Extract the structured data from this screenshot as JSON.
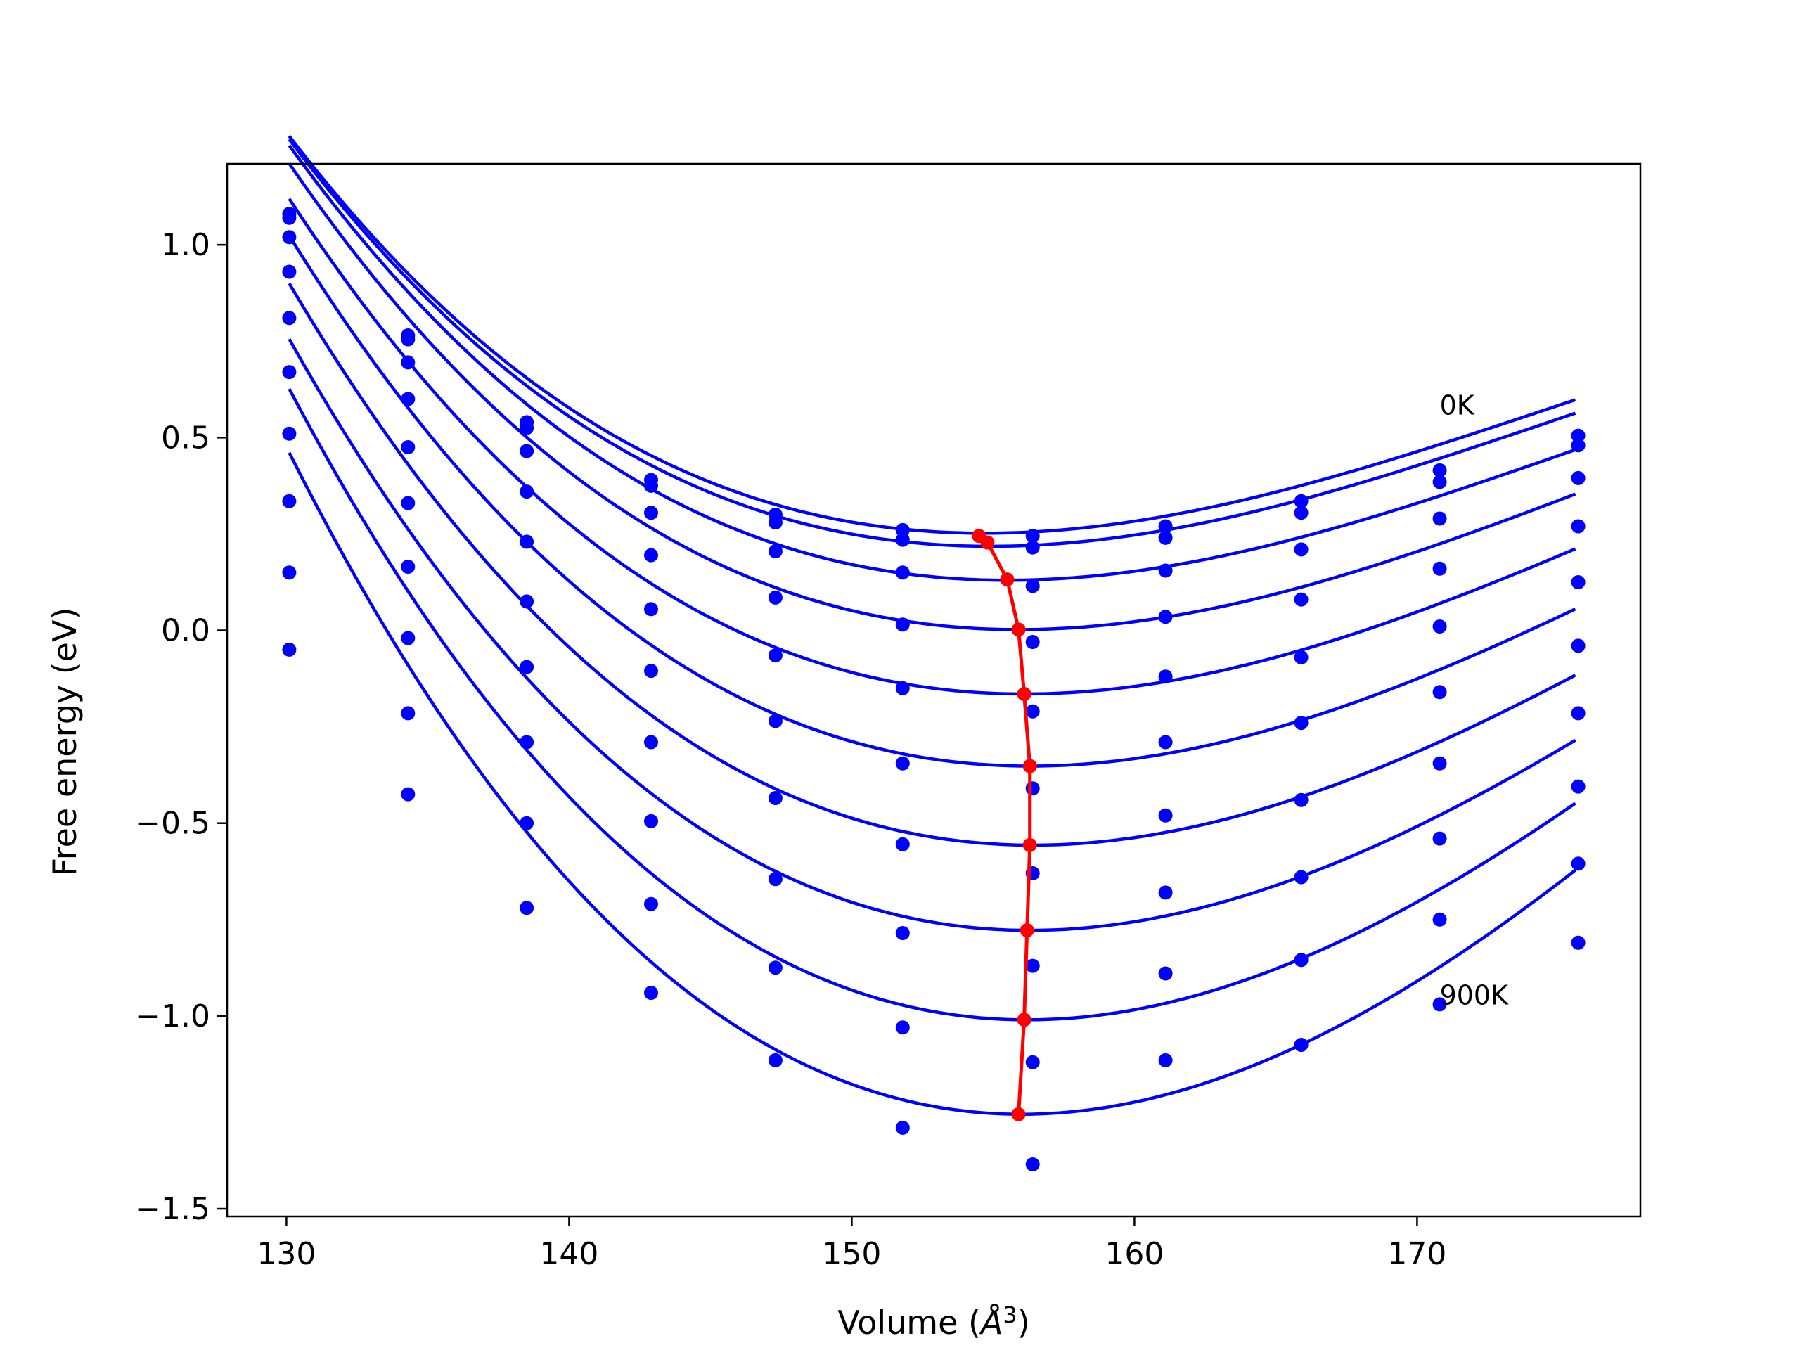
{
  "chart_data": {
    "type": "line",
    "title": "",
    "xlabel": "Volume (",
    "xlabel_symbol": "Å",
    "xlabel_sup": "3",
    "xlabel_close": ")",
    "ylabel": "Free energy (eV)",
    "xlim": [
      127.9,
      177.9
    ],
    "ylim": [
      -1.52,
      1.21
    ],
    "xticks": [
      130,
      140,
      150,
      160,
      170
    ],
    "xtick_labels": [
      "130",
      "140",
      "150",
      "160",
      "170"
    ],
    "yticks": [
      1.0,
      0.5,
      0.0,
      -0.5,
      -1.0,
      -1.5
    ],
    "ytick_labels": [
      "1.0",
      "0.5",
      "0.0",
      "−0.5",
      "−1.0",
      "−1.5"
    ],
    "grid": false,
    "colors": {
      "curves": "#0000ff",
      "points": "#0000ff",
      "minimum_path": "#ff0000"
    },
    "annotations": [
      {
        "text": "0K",
        "x": 170.8,
        "y": 0.56
      },
      {
        "text": "900K",
        "x": 170.8,
        "y": -0.97
      }
    ],
    "volumes": [
      130.1,
      134.3,
      138.5,
      142.9,
      147.3,
      151.8,
      156.4,
      161.1,
      165.9,
      170.8,
      175.7
    ],
    "series": [
      {
        "fit": {
          "vmin": 154.7,
          "fmin": 0.252,
          "a": 0.00121,
          "b": 2e-05,
          "vstart": 130.1,
          "vend": 175.7
        },
        "points": [
          1.08,
          0.765,
          0.54,
          0.39,
          0.3,
          0.26,
          0.245,
          0.27,
          0.335,
          0.415,
          0.505
        ]
      },
      {
        "fit": {
          "vmin": 154.9,
          "fmin": 0.218,
          "a": 0.00122,
          "b": 2e-05,
          "vstart": 130.1,
          "vend": 175.7
        },
        "points": [
          1.07,
          0.755,
          0.525,
          0.375,
          0.28,
          0.235,
          0.215,
          0.24,
          0.305,
          0.385,
          0.48
        ]
      },
      {
        "fit": {
          "vmin": 155.5,
          "fmin": 0.13,
          "a": 0.00124,
          "b": 2e-05,
          "vstart": 130.1,
          "vend": 175.7
        },
        "points": [
          1.02,
          0.695,
          0.465,
          0.305,
          0.205,
          0.15,
          0.115,
          0.155,
          0.21,
          0.29,
          0.395
        ]
      },
      {
        "fit": {
          "vmin": 155.9,
          "fmin": 0.002,
          "a": 0.0013,
          "b": 2e-05,
          "vstart": 130.1,
          "vend": 175.7
        },
        "points": [
          0.93,
          0.6,
          0.36,
          0.195,
          0.085,
          0.015,
          -0.03,
          0.035,
          0.08,
          0.16,
          0.27
        ]
      },
      {
        "fit": {
          "vmin": 156.1,
          "fmin": -0.165,
          "a": 0.00138,
          "b": 2e-05,
          "vstart": 130.1,
          "vend": 175.7
        },
        "points": [
          0.81,
          0.475,
          0.23,
          0.055,
          -0.065,
          -0.15,
          -0.21,
          -0.12,
          -0.07,
          0.01,
          0.125
        ]
      },
      {
        "fit": {
          "vmin": 156.3,
          "fmin": -0.352,
          "a": 0.00148,
          "b": 2e-05,
          "vstart": 130.1,
          "vend": 175.7
        },
        "points": [
          0.67,
          0.33,
          0.075,
          -0.105,
          -0.235,
          -0.345,
          -0.41,
          -0.29,
          -0.24,
          -0.16,
          -0.04
        ]
      },
      {
        "fit": {
          "vmin": 156.4,
          "fmin": -0.557,
          "a": 0.00158,
          "b": 2e-05,
          "vstart": 130.1,
          "vend": 175.7
        },
        "points": [
          0.51,
          0.165,
          -0.095,
          -0.29,
          -0.435,
          -0.555,
          -0.63,
          -0.48,
          -0.44,
          -0.345,
          -0.215
        ]
      },
      {
        "fit": {
          "vmin": 156.3,
          "fmin": -0.778,
          "a": 0.00171,
          "b": 2e-05,
          "vstart": 130.1,
          "vend": 175.7
        },
        "points": [
          0.335,
          -0.02,
          -0.29,
          -0.495,
          -0.645,
          -0.785,
          -0.87,
          -0.68,
          -0.64,
          -0.54,
          -0.405
        ]
      },
      {
        "fit": {
          "vmin": 156.2,
          "fmin": -1.01,
          "a": 0.00188,
          "b": 2e-05,
          "vstart": 130.1,
          "vend": 175.7
        },
        "points": [
          0.15,
          -0.215,
          -0.5,
          -0.71,
          -0.875,
          -1.03,
          -1.12,
          -0.89,
          -0.855,
          -0.75,
          -0.605
        ]
      },
      {
        "fit": {
          "vmin": 156.0,
          "fmin": -1.255,
          "a": 0.00204,
          "b": 2e-05,
          "vstart": 130.1,
          "vend": 175.7
        },
        "points": [
          -0.05,
          -0.425,
          -0.72,
          -0.94,
          -1.115,
          -1.29,
          -1.385,
          -1.115,
          -1.075,
          -0.97,
          -0.81
        ]
      }
    ],
    "minimum_path": {
      "x": [
        154.5,
        154.8,
        155.5,
        155.9,
        156.1,
        156.3,
        156.3,
        156.2,
        156.1,
        155.9
      ],
      "y": [
        0.245,
        0.228,
        0.132,
        0.002,
        -0.165,
        -0.352,
        -0.557,
        -0.778,
        -1.01,
        -1.255
      ]
    }
  }
}
